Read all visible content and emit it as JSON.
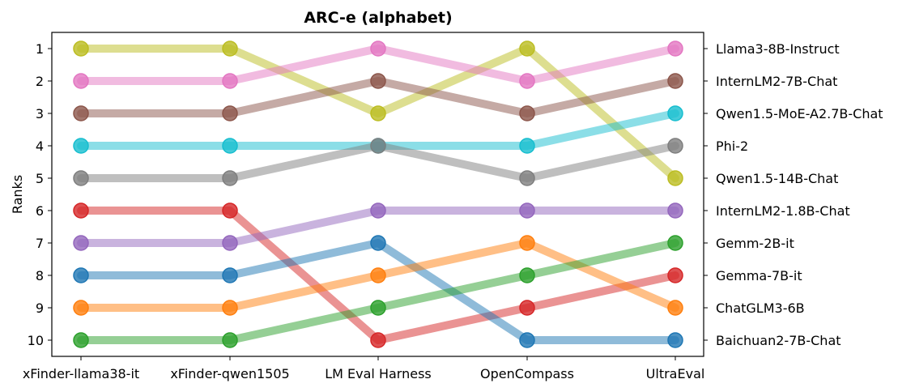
{
  "chart_data": {
    "type": "line",
    "title": "ARC-e (alphabet)",
    "ylabel": "Ranks",
    "xlabel": "",
    "categories": [
      "xFinder-llama38-it",
      "xFinder-qwen1505",
      "LM Eval Harness",
      "OpenCompass",
      "UltraEval"
    ],
    "y_ticks": [
      1,
      2,
      3,
      4,
      5,
      6,
      7,
      8,
      9,
      10
    ],
    "ylim": [
      10.5,
      0.5
    ],
    "y_inverted": true,
    "grid": false,
    "series": [
      {
        "name": "Llama3-8B-Instruct",
        "color": "#bcbd22",
        "values": [
          1,
          1,
          3,
          1,
          5
        ]
      },
      {
        "name": "InternLM2-7B-Chat",
        "color": "#e377c2",
        "values": [
          2,
          2,
          1,
          2,
          1
        ]
      },
      {
        "name": "Qwen1.5-MoE-A2.7B-Chat",
        "color": "#8c564b",
        "values": [
          3,
          3,
          2,
          3,
          2
        ]
      },
      {
        "name": "Phi-2",
        "color": "#17becf",
        "values": [
          4,
          4,
          4,
          4,
          3
        ]
      },
      {
        "name": "Qwen1.5-14B-Chat",
        "color": "#7f7f7f",
        "values": [
          5,
          5,
          4,
          5,
          4
        ]
      },
      {
        "name": "InternLM2-1.8B-Chat",
        "color": "#d62728",
        "values": [
          6,
          6,
          10,
          9,
          8
        ]
      },
      {
        "name": "Gemm-2B-it",
        "color": "#9467bd",
        "values": [
          7,
          7,
          6,
          6,
          6
        ]
      },
      {
        "name": "Gemma-7B-it",
        "color": "#1f77b4",
        "values": [
          8,
          8,
          7,
          10,
          10
        ]
      },
      {
        "name": "ChatGLM3-6B",
        "color": "#ff7f0e",
        "values": [
          9,
          9,
          8,
          7,
          9
        ]
      },
      {
        "name": "Baichuan2-7B-Chat",
        "color": "#2ca02c",
        "values": [
          10,
          10,
          9,
          8,
          7
        ]
      }
    ],
    "right_axis_labels": [
      "Llama3-8B-Instruct",
      "InternLM2-7B-Chat",
      "Qwen1.5-MoE-A2.7B-Chat",
      "Phi-2",
      "Qwen1.5-14B-Chat",
      "InternLM2-1.8B-Chat",
      "Gemm-2B-it",
      "Gemma-7B-it",
      "ChatGLM3-6B",
      "Baichuan2-7B-Chat"
    ]
  }
}
